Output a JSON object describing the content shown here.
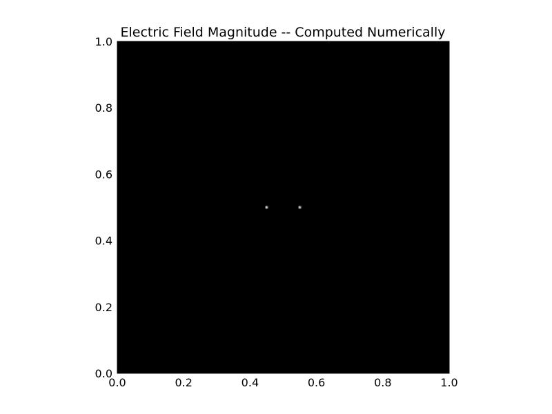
{
  "chart_data": {
    "type": "heatmap",
    "title": "Electric Field Magnitude -- Computed Numerically",
    "xlabel": "",
    "ylabel": "",
    "xlim": [
      0.0,
      1.0
    ],
    "ylim": [
      0.0,
      1.0
    ],
    "x_ticks": [
      "0.0",
      "0.2",
      "0.4",
      "0.6",
      "0.8",
      "1.0"
    ],
    "y_ticks": [
      "0.0",
      "0.2",
      "0.4",
      "0.6",
      "0.8",
      "1.0"
    ],
    "colormap": "gray",
    "background_color": "#000000",
    "grid": false,
    "legend": "none",
    "points": [
      {
        "x": 0.45,
        "y": 0.5
      },
      {
        "x": 0.55,
        "y": 0.5
      }
    ]
  }
}
